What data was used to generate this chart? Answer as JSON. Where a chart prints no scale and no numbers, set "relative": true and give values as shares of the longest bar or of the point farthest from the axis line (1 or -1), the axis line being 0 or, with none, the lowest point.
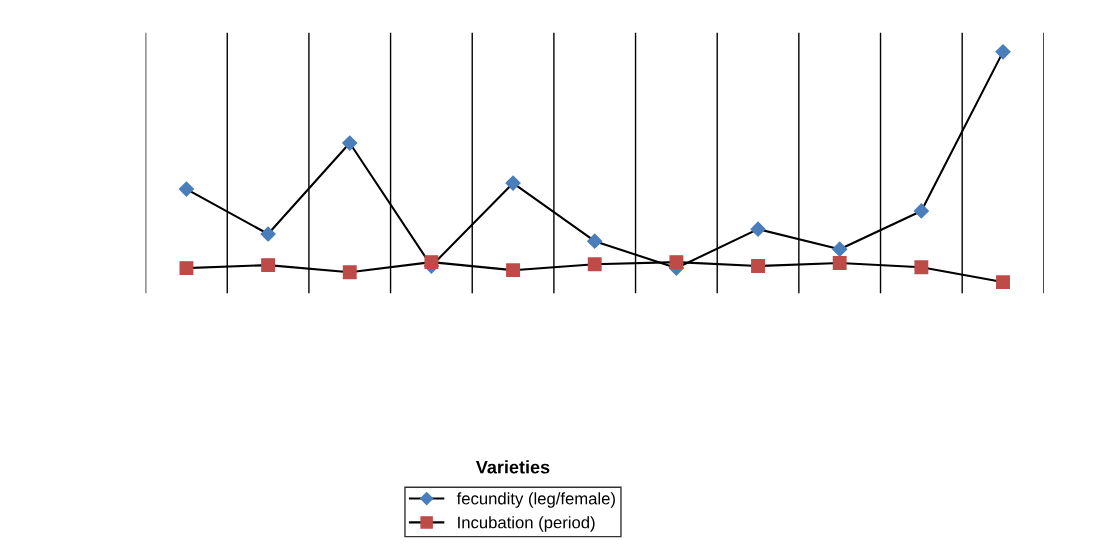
{
  "chart_data": {
    "type": "line",
    "relative": true,
    "annotations": [
      "Varieties"
    ],
    "categories": [
      null,
      null,
      null,
      null,
      null,
      null,
      null,
      null,
      null,
      null,
      null
    ],
    "series": [
      {
        "name": "fecundity (leg/female)",
        "color": "#000000",
        "colors": [
          "#4a7ebb",
          "#4a7ebb",
          "#4a7ebb",
          "#4a7ebb",
          "#4a7ebb",
          "#4a7ebb",
          "#4a7ebb",
          "#4a7ebb",
          "#4a7ebb",
          "#4a7ebb",
          "#4a7ebb"
        ],
        "marker": "diamond",
        "values": [
          0.404,
          0.209,
          0.604,
          0.07,
          0.43,
          0.178,
          0.061,
          0.23,
          0.143,
          0.309,
          1
        ]
      },
      {
        "name": "Incubation (period)",
        "color": "#000000",
        "colors": [
          "#be4b48",
          "#be4b48",
          "#be4b48",
          "#be4b48",
          "#be4b48",
          "#be4b48",
          "#be4b48",
          "#be4b48",
          "#be4b48",
          "#be4b48",
          "#be4b48"
        ],
        "marker": "square",
        "values": [
          0.061,
          0.074,
          0.043,
          0.087,
          0.052,
          0.078,
          0.087,
          0.07,
          0.083,
          0.065,
          0
        ]
      }
    ],
    "grid": "x",
    "legend": "bottom",
    "line_style": "solid"
  }
}
